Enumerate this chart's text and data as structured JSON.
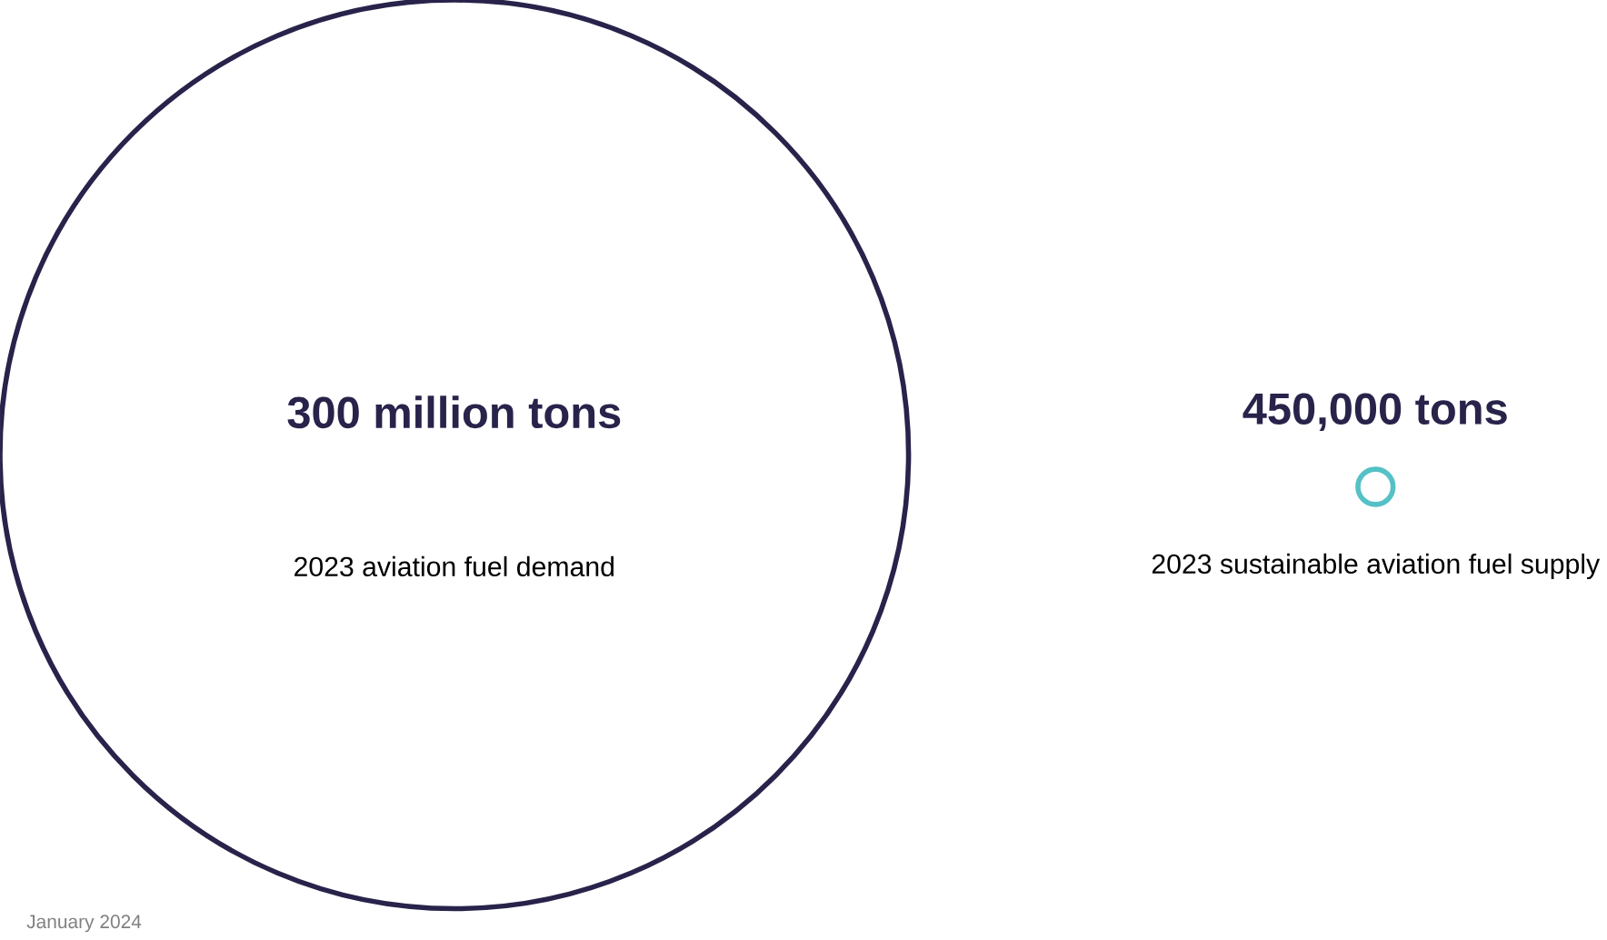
{
  "chart_data": {
    "type": "other",
    "categories": [
      "2023 aviation fuel demand",
      "2023 sustainable aviation fuel supply"
    ],
    "values": [
      300000000,
      450000
    ],
    "value_labels": [
      "300 million tons",
      "450,000 tons"
    ],
    "colors": [
      "#28234a",
      "#55c1c6"
    ],
    "annotations": [
      "January 2024"
    ]
  }
}
